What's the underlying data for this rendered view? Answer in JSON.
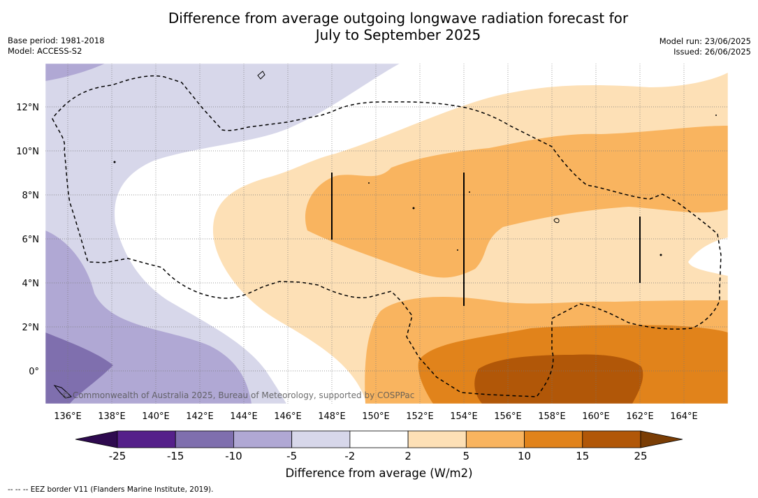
{
  "title": {
    "line1": "Difference from average outgoing longwave radiation forecast for",
    "line2": "July to September 2025"
  },
  "meta_left": {
    "base_period": "Base period: 1981-2018",
    "model": "Model: ACCESS-S2"
  },
  "meta_right": {
    "model_run": "Model run: 23/06/2025",
    "issued": "Issued: 26/06/2025"
  },
  "map": {
    "copyright": "© Commonwealth of Australia 2025, Bureau of Meteorology, supported by COSPPac",
    "lon_ticks": [
      "136°E",
      "138°E",
      "140°E",
      "142°E",
      "144°E",
      "146°E",
      "148°E",
      "150°E",
      "152°E",
      "154°E",
      "156°E",
      "158°E",
      "160°E",
      "162°E",
      "164°E"
    ],
    "lat_ticks": [
      "12°N",
      "10°N",
      "8°N",
      "6°N",
      "4°N",
      "2°N",
      "0°"
    ]
  },
  "colorbar": {
    "title": "Difference from average (W/m2)",
    "tick_labels": [
      "-25",
      "-15",
      "-10",
      "-5",
      "-2",
      "2",
      "5",
      "10",
      "15",
      "25"
    ],
    "colors": {
      "below_min": "#2e0a4f",
      "bins": [
        "#55208a",
        "#7f6fae",
        "#b0a8d4",
        "#d7d7ea",
        "#ffffff",
        "#fde0b6",
        "#f9b45f",
        "#e1831b",
        "#b15708"
      ],
      "above_max": "#7a3d05"
    }
  },
  "footnote": "-- -- -- EEZ border V11 (Flanders Marine Institute, 2019)."
}
